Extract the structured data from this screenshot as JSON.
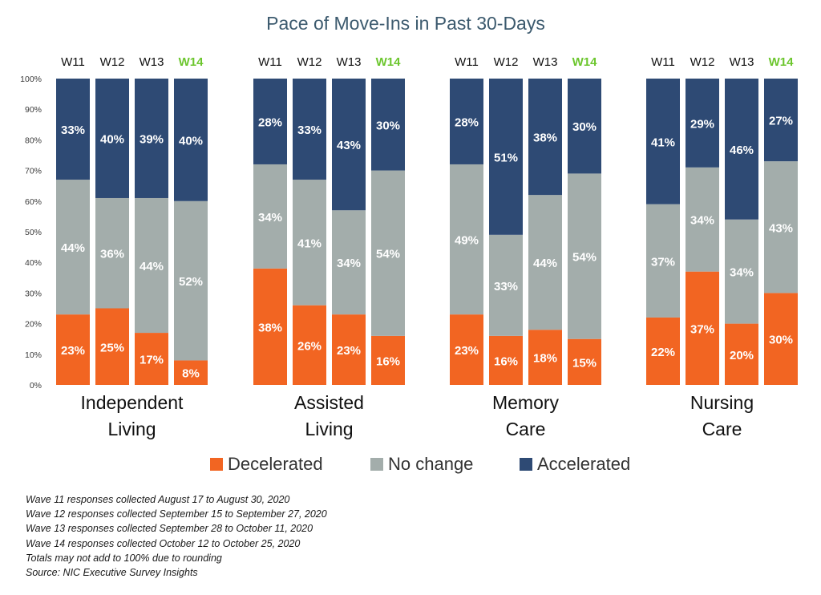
{
  "chart_data": {
    "type": "bar",
    "stacked": true,
    "percent_axis": true,
    "title": "Pace of Move-Ins in Past 30-Days",
    "yticks": [
      "0%",
      "10%",
      "20%",
      "30%",
      "40%",
      "50%",
      "60%",
      "70%",
      "80%",
      "90%",
      "100%"
    ],
    "ylim": [
      0,
      100
    ],
    "waves": [
      "W11",
      "W12",
      "W13",
      "W14"
    ],
    "highlight_wave": "W14",
    "groups": [
      {
        "label": "Independent Living",
        "label_lines": [
          "Independent",
          "Living"
        ],
        "decelerated": [
          23,
          25,
          17,
          8
        ],
        "no_change": [
          44,
          36,
          44,
          52
        ],
        "accelerated": [
          33,
          40,
          39,
          40
        ]
      },
      {
        "label": "Assisted Living",
        "label_lines": [
          "Assisted",
          "Living"
        ],
        "decelerated": [
          38,
          26,
          23,
          16
        ],
        "no_change": [
          34,
          41,
          34,
          54
        ],
        "accelerated": [
          28,
          33,
          43,
          30
        ]
      },
      {
        "label": "Memory Care",
        "label_lines": [
          "Memory",
          "Care"
        ],
        "decelerated": [
          23,
          16,
          18,
          15
        ],
        "no_change": [
          49,
          33,
          44,
          54
        ],
        "accelerated": [
          28,
          51,
          38,
          30
        ]
      },
      {
        "label": "Nursing Care",
        "label_lines": [
          "Nursing",
          "Care"
        ],
        "decelerated": [
          22,
          37,
          20,
          30
        ],
        "no_change": [
          37,
          34,
          34,
          43
        ],
        "accelerated": [
          41,
          29,
          46,
          27
        ]
      }
    ],
    "series": [
      {
        "key": "decelerated",
        "name": "Decelerated",
        "color": "#f26522"
      },
      {
        "key": "no_change",
        "name": "No change",
        "color": "#a3adab"
      },
      {
        "key": "accelerated",
        "name": "Accelerated",
        "color": "#2e4a74"
      }
    ],
    "legend_position": "bottom",
    "colors": {
      "title": "#3c5a6e",
      "axis_text": "#3a3a3a",
      "highlight_wave": "#6cc62e",
      "wave_text": "#111111",
      "segment_label": "#ffffff"
    }
  },
  "notes": [
    "Wave 11 responses collected August 17 to August 30, 2020",
    "Wave 12 responses collected September 15 to September 27, 2020",
    "Wave 13 responses collected September 28 to October 11, 2020",
    "Wave 14 responses collected October 12 to October 25, 2020",
    "Totals may not add to 100% due to rounding",
    "Source: NIC Executive Survey Insights"
  ]
}
